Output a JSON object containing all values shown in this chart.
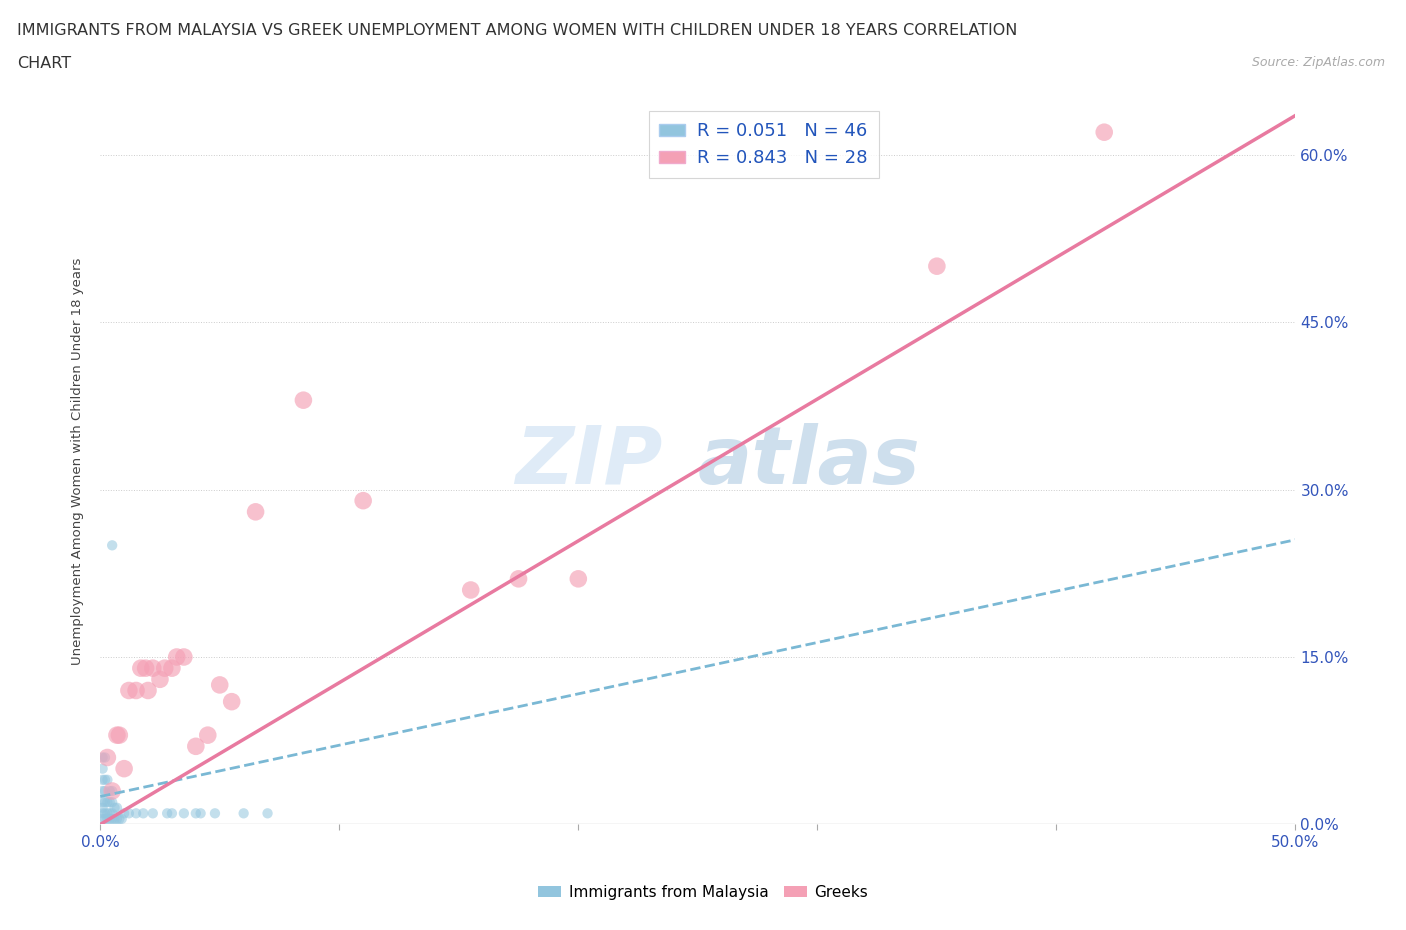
{
  "title_line1": "IMMIGRANTS FROM MALAYSIA VS GREEK UNEMPLOYMENT AMONG WOMEN WITH CHILDREN UNDER 18 YEARS CORRELATION",
  "title_line2": "CHART",
  "source": "Source: ZipAtlas.com",
  "ylabel": "Unemployment Among Women with Children Under 18 years",
  "xlim": [
    0,
    0.5
  ],
  "ylim": [
    0,
    0.65
  ],
  "ytick_labels_right": [
    "0.0%",
    "15.0%",
    "30.0%",
    "45.0%",
    "60.0%"
  ],
  "ytick_positions_right": [
    0.0,
    0.15,
    0.3,
    0.45,
    0.6
  ],
  "color_blue": "#92c5de",
  "color_blue_line": "#7ab8d4",
  "color_pink": "#f4a0b5",
  "color_pink_line": "#e87aa0",
  "legend_R_blue": "R = 0.051",
  "legend_N_blue": "N = 46",
  "legend_R_pink": "R = 0.843",
  "legend_N_pink": "N = 28",
  "watermark_zip": "ZIP",
  "watermark_atlas": "atlas",
  "blue_scatter_x": [
    0.001,
    0.001,
    0.001,
    0.001,
    0.001,
    0.001,
    0.001,
    0.001,
    0.002,
    0.002,
    0.002,
    0.002,
    0.002,
    0.002,
    0.003,
    0.003,
    0.003,
    0.003,
    0.004,
    0.004,
    0.004,
    0.004,
    0.005,
    0.005,
    0.005,
    0.005,
    0.006,
    0.006,
    0.007,
    0.007,
    0.008,
    0.009,
    0.01,
    0.012,
    0.015,
    0.018,
    0.022,
    0.028,
    0.03,
    0.035,
    0.04,
    0.042,
    0.048,
    0.06,
    0.07,
    0.005
  ],
  "blue_scatter_y": [
    0.005,
    0.01,
    0.015,
    0.02,
    0.03,
    0.04,
    0.05,
    0.06,
    0.005,
    0.01,
    0.02,
    0.03,
    0.04,
    0.06,
    0.005,
    0.01,
    0.02,
    0.04,
    0.005,
    0.01,
    0.02,
    0.03,
    0.005,
    0.01,
    0.02,
    0.03,
    0.005,
    0.015,
    0.005,
    0.015,
    0.005,
    0.005,
    0.01,
    0.01,
    0.01,
    0.01,
    0.01,
    0.01,
    0.01,
    0.01,
    0.01,
    0.01,
    0.01,
    0.01,
    0.01,
    0.25
  ],
  "pink_scatter_x": [
    0.003,
    0.005,
    0.007,
    0.008,
    0.01,
    0.012,
    0.015,
    0.017,
    0.019,
    0.02,
    0.022,
    0.025,
    0.027,
    0.03,
    0.032,
    0.035,
    0.04,
    0.045,
    0.05,
    0.055,
    0.065,
    0.085,
    0.11,
    0.155,
    0.175,
    0.2,
    0.35,
    0.42
  ],
  "pink_scatter_y": [
    0.06,
    0.03,
    0.08,
    0.08,
    0.05,
    0.12,
    0.12,
    0.14,
    0.14,
    0.12,
    0.14,
    0.13,
    0.14,
    0.14,
    0.15,
    0.15,
    0.07,
    0.08,
    0.125,
    0.11,
    0.28,
    0.38,
    0.29,
    0.21,
    0.22,
    0.22,
    0.5,
    0.62
  ],
  "blue_trendline": [
    0.0,
    0.5,
    0.025,
    0.255
  ],
  "pink_trendline": [
    0.0,
    0.5,
    0.0,
    0.635
  ],
  "blue_marker_size": 55,
  "pink_marker_size": 160
}
